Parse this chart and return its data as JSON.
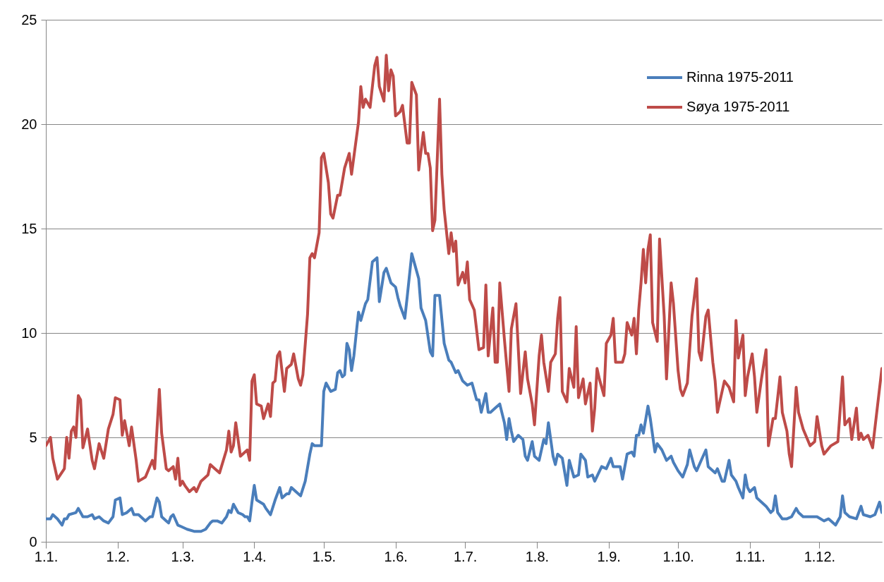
{
  "chart_data": {
    "type": "line",
    "xlim": [
      "--01-01",
      "--12-28"
    ],
    "xticks": [
      {
        "value": "--01-01",
        "label": "1.1."
      },
      {
        "value": "--02-01",
        "label": "1.2."
      },
      {
        "value": "--03-01",
        "label": "1.3."
      },
      {
        "value": "--04-01",
        "label": "1.4."
      },
      {
        "value": "--05-01",
        "label": "1.5."
      },
      {
        "value": "--06-01",
        "label": "1.6."
      },
      {
        "value": "--07-01",
        "label": "1.7."
      },
      {
        "value": "--08-01",
        "label": "1.8."
      },
      {
        "value": "--09-01",
        "label": "1.9."
      },
      {
        "value": "--10-01",
        "label": "1.10."
      },
      {
        "value": "--11-01",
        "label": "1.11."
      },
      {
        "value": "--12-01",
        "label": "1.12."
      }
    ],
    "ylim": [
      0,
      25
    ],
    "yticks": [
      0,
      5,
      10,
      15,
      20,
      25
    ],
    "grid": "y",
    "legend": "top right",
    "series": [
      {
        "name": "Rinna 1975-2011",
        "color": "#4a7ebb",
        "x": [
          "--01-01",
          "--01-03",
          "--01-04",
          "--01-06",
          "--01-08",
          "--01-09",
          "--01-10",
          "--01-11",
          "--01-14",
          "--01-15",
          "--01-17",
          "--01-19",
          "--01-21",
          "--01-22",
          "--01-24",
          "--01-26",
          "--01-28",
          "--01-30",
          "--01-31",
          "--02-02",
          "--02-03",
          "--02-05",
          "--02-07",
          "--02-08",
          "--02-10",
          "--02-13",
          "--02-15",
          "--02-16",
          "--02-18",
          "--02-19",
          "--02-20",
          "--02-22",
          "--02-23",
          "--02-24",
          "--02-25",
          "--02-27",
          "--03-01",
          "--03-03",
          "--03-06",
          "--03-09",
          "--03-11",
          "--03-13",
          "--03-14",
          "--03-16",
          "--03-18",
          "--03-20",
          "--03-21",
          "--03-22",
          "--03-23",
          "--03-25",
          "--03-27",
          "--03-28",
          "--03-29",
          "--03-30",
          "--03-31",
          "--04-01",
          "--04-02",
          "--04-05",
          "--04-06",
          "--04-08",
          "--04-10",
          "--04-12",
          "--04-13",
          "--04-15",
          "--04-16",
          "--04-17",
          "--04-19",
          "--04-21",
          "--04-23",
          "--04-25",
          "--04-26",
          "--04-27",
          "--04-30",
          "--05-01",
          "--05-02",
          "--05-04",
          "--05-06",
          "--05-07",
          "--05-08",
          "--05-09",
          "--05-10",
          "--05-11",
          "--05-12",
          "--05-13",
          "--05-14",
          "--05-16",
          "--05-17",
          "--05-19",
          "--05-20",
          "--05-22",
          "--05-24",
          "--05-25",
          "--05-27",
          "--05-28",
          "--05-30",
          "--06-01",
          "--06-02",
          "--06-03",
          "--06-05",
          "--06-06",
          "--06-08",
          "--06-09",
          "--06-11",
          "--06-12",
          "--06-13",
          "--06-14",
          "--06-16",
          "--06-17",
          "--06-18",
          "--06-20",
          "--06-22",
          "--06-24",
          "--06-25",
          "--06-27",
          "--06-28",
          "--06-30",
          "--07-02",
          "--07-04",
          "--07-06",
          "--07-07",
          "--07-08",
          "--07-10",
          "--07-11",
          "--07-12",
          "--07-14",
          "--07-16",
          "--07-18",
          "--07-19",
          "--07-20",
          "--07-21",
          "--07-22",
          "--07-24",
          "--07-26",
          "--07-27",
          "--07-28",
          "--07-30",
          "--07-31",
          "--08-02",
          "--08-04",
          "--08-05",
          "--08-06",
          "--08-08",
          "--08-09",
          "--08-10",
          "--08-12",
          "--08-14",
          "--08-15",
          "--08-17",
          "--08-19",
          "--08-20",
          "--08-22",
          "--08-23",
          "--08-25",
          "--08-26",
          "--08-29",
          "--08-31",
          "--09-02",
          "--09-03",
          "--09-06",
          "--09-07",
          "--09-09",
          "--09-11",
          "--09-12",
          "--09-13",
          "--09-14",
          "--09-15",
          "--09-16",
          "--09-18",
          "--09-19",
          "--09-21",
          "--09-22",
          "--09-24",
          "--09-26",
          "--09-28",
          "--09-29",
          "--10-01",
          "--10-03",
          "--10-05",
          "--10-06",
          "--10-08",
          "--10-09",
          "--10-11",
          "--10-13",
          "--10-14",
          "--10-17",
          "--10-18",
          "--10-20",
          "--10-21",
          "--10-23",
          "--10-24",
          "--10-26",
          "--10-27",
          "--10-29",
          "--10-30",
          "--10-31",
          "--11-01",
          "--11-03",
          "--11-04",
          "--11-06",
          "--11-08",
          "--11-10",
          "--11-11",
          "--11-12",
          "--11-13",
          "--11-15",
          "--11-17",
          "--11-19",
          "--11-21",
          "--11-22",
          "--11-24",
          "--11-27",
          "--11-30",
          "--12-03",
          "--12-05",
          "--12-08",
          "--12-10",
          "--12-11",
          "--12-12",
          "--12-14",
          "--12-17",
          "--12-19",
          "--12-20",
          "--12-23",
          "--12-25",
          "--12-27",
          "--12-28"
        ],
        "values": [
          1.1,
          1.1,
          1.3,
          1.1,
          0.8,
          1.1,
          1.1,
          1.3,
          1.4,
          1.6,
          1.2,
          1.2,
          1.3,
          1.1,
          1.2,
          1.0,
          0.9,
          1.2,
          2.0,
          2.1,
          1.3,
          1.4,
          1.6,
          1.3,
          1.3,
          1.0,
          1.2,
          1.2,
          2.1,
          1.9,
          1.2,
          1.0,
          0.9,
          1.2,
          1.3,
          0.8,
          0.7,
          0.6,
          0.5,
          0.5,
          0.6,
          0.9,
          1.0,
          1.0,
          0.9,
          1.2,
          1.5,
          1.4,
          1.8,
          1.4,
          1.3,
          1.2,
          1.2,
          1.0,
          1.9,
          2.7,
          2.0,
          1.8,
          1.6,
          1.3,
          2.0,
          2.6,
          2.1,
          2.3,
          2.3,
          2.6,
          2.4,
          2.2,
          2.9,
          4.2,
          4.7,
          4.6,
          4.6,
          7.2,
          7.6,
          7.2,
          7.3,
          8.1,
          8.2,
          7.9,
          8.0,
          9.5,
          9.2,
          8.2,
          8.9,
          11.0,
          10.6,
          11.4,
          11.6,
          13.4,
          13.6,
          11.5,
          12.9,
          13.1,
          12.4,
          12.2,
          11.7,
          11.3,
          10.7,
          11.7,
          13.8,
          13.4,
          12.6,
          11.2,
          10.9,
          10.6,
          9.1,
          8.9,
          11.8,
          11.8,
          9.5,
          8.7,
          8.6,
          8.1,
          8.2,
          7.7,
          7.5,
          7.6,
          6.8,
          6.8,
          6.2,
          7.1,
          6.2,
          6.2,
          6.4,
          6.6,
          5.7,
          4.9,
          5.9,
          5.3,
          4.8,
          5.1,
          4.9,
          4.1,
          3.9,
          4.8,
          4.1,
          3.9,
          4.9,
          4.7,
          5.7,
          4.1,
          3.7,
          4.2,
          4.0,
          2.7,
          3.9,
          3.1,
          3.2,
          4.2,
          3.9,
          3.1,
          3.2,
          2.9,
          3.6,
          3.5,
          4.0,
          3.6,
          3.6,
          3.0,
          4.2,
          4.3,
          4.1,
          5.1,
          5.1,
          5.6,
          5.2,
          6.5,
          5.9,
          4.3,
          4.7,
          4.4,
          3.9,
          4.1,
          3.8,
          3.4,
          3.1,
          3.7,
          4.4,
          3.6,
          3.4,
          3.9,
          4.4,
          3.6,
          3.3,
          3.5,
          2.9,
          2.9,
          3.9,
          3.2,
          2.9,
          2.6,
          2.1,
          3.2,
          2.6,
          2.4,
          2.6,
          2.1,
          1.9,
          1.7,
          1.4,
          1.5,
          2.2,
          1.4,
          1.1,
          1.1,
          1.2,
          1.6,
          1.4,
          1.2,
          1.2,
          1.2,
          1.0,
          1.1,
          0.8,
          1.2,
          2.2,
          1.4,
          1.2,
          1.1,
          1.7,
          1.3,
          1.2,
          1.3,
          1.9,
          1.4
        ]
      },
      {
        "name": "Søya 1975-2011",
        "color": "#be4b48",
        "x": [
          "--01-01",
          "--01-03",
          "--01-04",
          "--01-06",
          "--01-09",
          "--01-10",
          "--01-11",
          "--01-12",
          "--01-13",
          "--01-14",
          "--01-15",
          "--01-16",
          "--01-17",
          "--01-19",
          "--01-21",
          "--01-22",
          "--01-24",
          "--01-26",
          "--01-28",
          "--01-30",
          "--01-31",
          "--02-02",
          "--02-03",
          "--02-04",
          "--02-06",
          "--02-07",
          "--02-09",
          "--02-10",
          "--02-13",
          "--02-16",
          "--02-17",
          "--02-19",
          "--02-20",
          "--02-22",
          "--02-23",
          "--02-25",
          "--02-26",
          "--02-27",
          "--02-28",
          "--03-01",
          "--03-02",
          "--03-04",
          "--03-06",
          "--03-07",
          "--03-09",
          "--03-12",
          "--03-13",
          "--03-15",
          "--03-17",
          "--03-20",
          "--03-21",
          "--03-22",
          "--03-23",
          "--03-24",
          "--03-26",
          "--03-29",
          "--03-30",
          "--03-31",
          "--04-01",
          "--04-02",
          "--04-04",
          "--04-05",
          "--04-07",
          "--04-08",
          "--04-09",
          "--04-10",
          "--04-11",
          "--04-12",
          "--04-14",
          "--04-15",
          "--04-17",
          "--04-18",
          "--04-20",
          "--04-21",
          "--04-22",
          "--04-24",
          "--04-25",
          "--04-26",
          "--04-27",
          "--04-29",
          "--04-30",
          "--05-01",
          "--05-03",
          "--05-04",
          "--05-05",
          "--05-07",
          "--05-08",
          "--05-10",
          "--05-12",
          "--05-13",
          "--05-16",
          "--05-17",
          "--05-18",
          "--05-19",
          "--05-21",
          "--05-23",
          "--05-24",
          "--05-25",
          "--05-27",
          "--05-28",
          "--05-29",
          "--05-30",
          "--05-31",
          "--06-01",
          "--06-03",
          "--06-04",
          "--06-06",
          "--06-07",
          "--06-08",
          "--06-10",
          "--06-11",
          "--06-13",
          "--06-14",
          "--06-15",
          "--06-16",
          "--06-17",
          "--06-18",
          "--06-20",
          "--06-21",
          "--06-22",
          "--06-24",
          "--06-25",
          "--06-26",
          "--06-27",
          "--06-28",
          "--06-30",
          "--07-01",
          "--07-02",
          "--07-03",
          "--07-05",
          "--07-07",
          "--07-09",
          "--07-10",
          "--07-11",
          "--07-13",
          "--07-14",
          "--07-15",
          "--07-16",
          "--07-18",
          "--07-20",
          "--07-21",
          "--07-23",
          "--07-25",
          "--07-27",
          "--07-28",
          "--07-30",
          "--07-31",
          "--08-02",
          "--08-03",
          "--08-04",
          "--08-06",
          "--08-07",
          "--08-09",
          "--08-10",
          "--08-11",
          "--08-12",
          "--08-14",
          "--08-15",
          "--08-17",
          "--08-18",
          "--08-19",
          "--08-21",
          "--08-22",
          "--08-24",
          "--08-25",
          "--08-26",
          "--08-27",
          "--08-28",
          "--08-30",
          "--08-31",
          "--09-02",
          "--09-03",
          "--09-04",
          "--09-06",
          "--09-07",
          "--09-08",
          "--09-09",
          "--09-11",
          "--09-12",
          "--09-13",
          "--09-14",
          "--09-15",
          "--09-16",
          "--09-17",
          "--09-18",
          "--09-19",
          "--09-20",
          "--09-22",
          "--09-23",
          "--09-25",
          "--09-26",
          "--09-28",
          "--09-29",
          "--10-01",
          "--10-02",
          "--10-03",
          "--10-05",
          "--10-07",
          "--10-09",
          "--10-10",
          "--10-11",
          "--10-13",
          "--10-14",
          "--10-16",
          "--10-17",
          "--10-18",
          "--10-20",
          "--10-21",
          "--10-23",
          "--10-25",
          "--10-26",
          "--10-27",
          "--10-29",
          "--10-30",
          "--10-31",
          "--11-02",
          "--11-03",
          "--11-04",
          "--11-06",
          "--11-08",
          "--11-09",
          "--11-11",
          "--11-12",
          "--11-14",
          "--11-15",
          "--11-17",
          "--11-18",
          "--11-19",
          "--11-21",
          "--11-22",
          "--11-24",
          "--11-27",
          "--11-29",
          "--11-30",
          "--12-02",
          "--12-03",
          "--12-06",
          "--12-09",
          "--12-11",
          "--12-12",
          "--12-14",
          "--12-15",
          "--12-17",
          "--12-18",
          "--12-19",
          "--12-20",
          "--12-22",
          "--12-24",
          "--12-28"
        ],
        "values": [
          4.6,
          5.0,
          4.0,
          3.0,
          3.5,
          5.0,
          4.0,
          5.3,
          5.5,
          5.0,
          7.0,
          6.8,
          4.5,
          5.4,
          3.9,
          3.5,
          4.7,
          4.0,
          5.4,
          6.1,
          6.9,
          6.8,
          5.1,
          5.8,
          4.6,
          5.5,
          3.9,
          2.9,
          3.1,
          3.9,
          3.5,
          7.3,
          5.2,
          3.5,
          3.4,
          3.6,
          3.0,
          4.0,
          2.7,
          2.9,
          2.7,
          2.4,
          2.6,
          2.4,
          2.9,
          3.2,
          3.7,
          3.5,
          3.3,
          4.4,
          5.3,
          4.3,
          4.6,
          5.7,
          4.1,
          4.4,
          3.9,
          7.7,
          8.0,
          6.6,
          6.5,
          5.9,
          6.6,
          6.0,
          7.6,
          7.7,
          8.9,
          9.1,
          7.2,
          8.3,
          8.5,
          9.0,
          7.8,
          7.5,
          8.0,
          10.9,
          13.6,
          13.8,
          13.6,
          14.8,
          18.4,
          18.6,
          17.2,
          15.7,
          15.5,
          16.6,
          16.6,
          17.9,
          18.6,
          17.6,
          20.1,
          21.8,
          20.8,
          21.2,
          20.8,
          22.8,
          23.2,
          21.8,
          21.1,
          23.3,
          21.6,
          22.6,
          22.3,
          20.4,
          20.6,
          20.9,
          19.1,
          19.1,
          22.0,
          21.4,
          17.8,
          19.6,
          18.6,
          18.6,
          17.9,
          14.9,
          15.4,
          21.2,
          17.6,
          15.9,
          13.8,
          14.8,
          13.9,
          14.4,
          12.3,
          12.9,
          12.4,
          13.4,
          11.6,
          11.1,
          9.2,
          9.3,
          12.3,
          8.9,
          11.2,
          8.6,
          8.6,
          12.4,
          9.7,
          7.2,
          10.2,
          11.4,
          7.1,
          9.1,
          7.8,
          6.6,
          5.6,
          8.9,
          9.9,
          8.6,
          7.2,
          8.6,
          9.0,
          10.7,
          11.7,
          7.2,
          6.7,
          8.3,
          7.4,
          10.3,
          6.9,
          7.8,
          6.6,
          7.6,
          5.3,
          6.4,
          8.3,
          7.8,
          7.0,
          9.5,
          9.9,
          10.7,
          8.6,
          8.6,
          8.6,
          9.0,
          10.5,
          9.9,
          10.7,
          9.0,
          11.1,
          12.4,
          14.0,
          12.4,
          14.0,
          14.7,
          10.5,
          9.6,
          14.5,
          10.8,
          7.8,
          12.4,
          11.4,
          8.2,
          7.3,
          7.0,
          7.6,
          10.8,
          12.6,
          9.1,
          8.7,
          10.8,
          11.1,
          8.6,
          7.7,
          6.2,
          7.2,
          7.7,
          7.4,
          6.7,
          10.6,
          8.8,
          9.9,
          7.0,
          7.9,
          9.0,
          7.9,
          6.2,
          7.8,
          9.2,
          4.6,
          5.9,
          5.9,
          7.9,
          6.2,
          5.3,
          4.2,
          3.6,
          7.4,
          6.2,
          5.4,
          4.6,
          4.8,
          6.0,
          4.6,
          4.2,
          4.6,
          4.8,
          7.9,
          5.6,
          5.9,
          4.9,
          6.4,
          4.9,
          5.2,
          4.9,
          5.1,
          4.5,
          8.3
        ]
      }
    ]
  }
}
